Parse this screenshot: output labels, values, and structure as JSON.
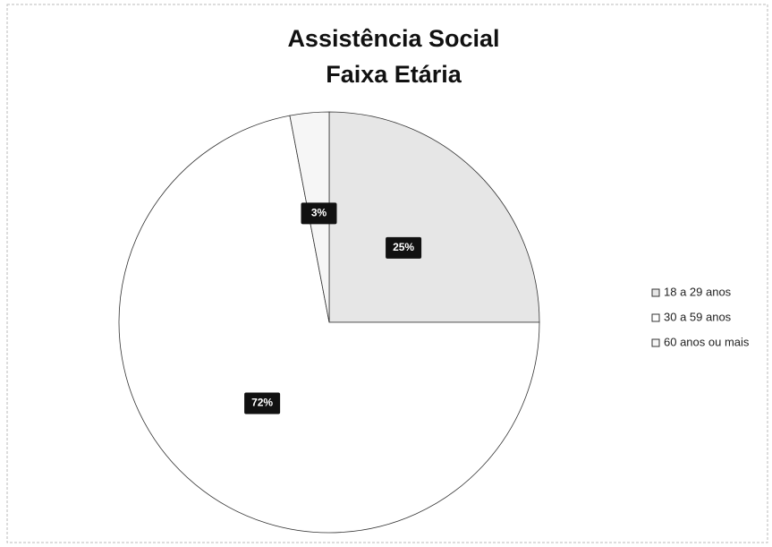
{
  "chart_data": {
    "type": "pie",
    "title": [
      "Assistência Social",
      "Faixa Etária"
    ],
    "categories": [
      "18 a 29 anos",
      "30 a 59 anos",
      "60 anos ou mais"
    ],
    "values": [
      25,
      72,
      3
    ],
    "value_labels": [
      "25%",
      "72%",
      "3%"
    ],
    "colors": [
      "#e6e6e6",
      "#ffffff",
      "#f6f6f6"
    ],
    "legend": "right"
  }
}
